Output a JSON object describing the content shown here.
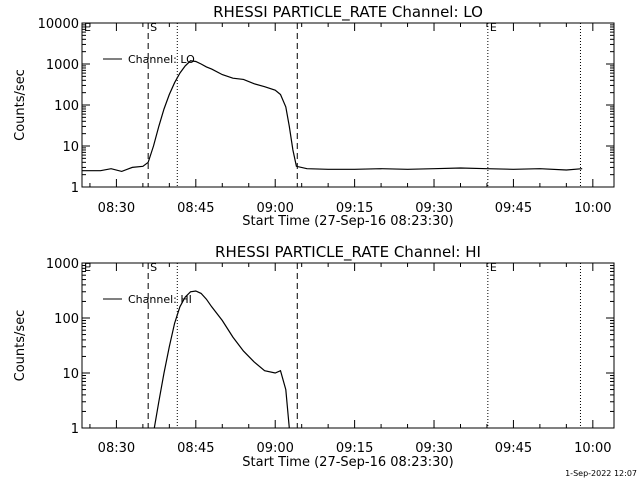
{
  "footer": {
    "timestamp": "1-Sep-2022 12:07"
  },
  "chart_data": [
    {
      "type": "line",
      "title": "RHESSI PARTICLE_RATE Channel: LO",
      "xlabel": "Start Time (27-Sep-16 08:23:30)",
      "ylabel": "Counts/sec",
      "y_scale": "log",
      "ylim": [
        1,
        10000
      ],
      "xlim": [
        "08:23:30",
        "10:04:00"
      ],
      "x_tick_labels": [
        "08:30",
        "08:45",
        "09:00",
        "09:15",
        "09:30",
        "09:45",
        "10:00"
      ],
      "y_tick_labels": [
        "1",
        "10",
        "100",
        "1000",
        "10000"
      ],
      "markers": [
        {
          "label": "E",
          "time": "08:23:30",
          "style": "dotted"
        },
        {
          "label": "S",
          "time": "08:36:00",
          "style": "dashed"
        },
        {
          "label": "",
          "time": "08:41:30",
          "style": "dotted"
        },
        {
          "label": "",
          "time": "09:04:10",
          "style": "dashed"
        },
        {
          "label": "E",
          "time": "09:40:10",
          "style": "dotted"
        },
        {
          "label": "",
          "time": "09:57:40",
          "style": "dotted"
        }
      ],
      "series": [
        {
          "name": "Channel: LO",
          "x": [
            "08:23:30",
            "08:25:00",
            "08:27:00",
            "08:29:00",
            "08:31:00",
            "08:33:00",
            "08:35:00",
            "08:36:00",
            "08:37:00",
            "08:38:00",
            "08:39:00",
            "08:40:00",
            "08:41:00",
            "08:42:00",
            "08:43:00",
            "08:44:00",
            "08:45:00",
            "08:46:00",
            "08:47:00",
            "08:48:00",
            "08:50:00",
            "08:52:00",
            "08:54:00",
            "08:56:00",
            "08:58:00",
            "09:00:00",
            "09:01:00",
            "09:02:00",
            "09:02:40",
            "09:03:20",
            "09:04:00",
            "09:06:00",
            "09:10:00",
            "09:15:00",
            "09:20:00",
            "09:25:00",
            "09:30:00",
            "09:35:00",
            "09:40:00",
            "09:45:00",
            "09:50:00",
            "09:55:00",
            "09:58:00"
          ],
          "y": [
            2.5,
            2.5,
            2.5,
            2.8,
            2.4,
            3.0,
            3.2,
            4,
            10,
            30,
            80,
            180,
            350,
            600,
            900,
            1200,
            1150,
            1000,
            850,
            750,
            550,
            450,
            420,
            330,
            280,
            230,
            180,
            90,
            30,
            8,
            3.2,
            2.8,
            2.7,
            2.7,
            2.8,
            2.7,
            2.8,
            2.9,
            2.8,
            2.7,
            2.8,
            2.6,
            2.8
          ]
        }
      ]
    },
    {
      "type": "line",
      "title": "RHESSI PARTICLE_RATE Channel: HI",
      "xlabel": "Start Time (27-Sep-16 08:23:30)",
      "ylabel": "Counts/sec",
      "y_scale": "log",
      "ylim": [
        1,
        1000
      ],
      "xlim": [
        "08:23:30",
        "10:04:00"
      ],
      "x_tick_labels": [
        "08:30",
        "08:45",
        "09:00",
        "09:15",
        "09:30",
        "09:45",
        "10:00"
      ],
      "y_tick_labels": [
        "1",
        "10",
        "100",
        "1000"
      ],
      "markers": [
        {
          "label": "E",
          "time": "08:23:30",
          "style": "dotted"
        },
        {
          "label": "S",
          "time": "08:36:00",
          "style": "dashed"
        },
        {
          "label": "",
          "time": "08:41:30",
          "style": "dotted"
        },
        {
          "label": "",
          "time": "09:04:10",
          "style": "dashed"
        },
        {
          "label": "E",
          "time": "09:40:10",
          "style": "dotted"
        },
        {
          "label": "",
          "time": "09:57:40",
          "style": "dotted"
        }
      ],
      "series": [
        {
          "name": "Channel: HI",
          "x": [
            "08:37:10",
            "08:38:00",
            "08:39:00",
            "08:40:00",
            "08:41:00",
            "08:42:00",
            "08:43:00",
            "08:44:00",
            "08:45:00",
            "08:46:00",
            "08:47:00",
            "08:48:00",
            "08:50:00",
            "08:52:00",
            "08:54:00",
            "08:56:00",
            "08:58:00",
            "09:00:00",
            "09:01:00",
            "09:02:00",
            "09:02:40"
          ],
          "y": [
            1,
            3,
            10,
            30,
            80,
            160,
            240,
            300,
            310,
            280,
            220,
            160,
            90,
            45,
            25,
            16,
            11,
            10,
            11,
            5,
            1
          ]
        }
      ]
    }
  ]
}
